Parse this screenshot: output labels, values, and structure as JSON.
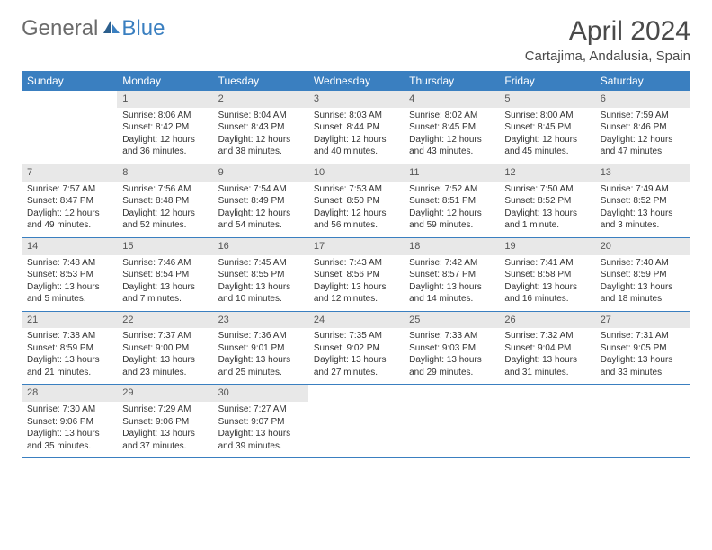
{
  "logo": {
    "text1": "General",
    "text2": "Blue"
  },
  "title": "April 2024",
  "location": "Cartajima, Andalusia, Spain",
  "weekdays": [
    "Sunday",
    "Monday",
    "Tuesday",
    "Wednesday",
    "Thursday",
    "Friday",
    "Saturday"
  ],
  "colors": {
    "header_bg": "#3a7fc0",
    "header_text": "#ffffff",
    "daynum_bg": "#e8e8e8",
    "border": "#3a7fc0"
  },
  "weeks": [
    [
      null,
      {
        "num": "1",
        "sunrise": "Sunrise: 8:06 AM",
        "sunset": "Sunset: 8:42 PM",
        "daylight": "Daylight: 12 hours and 36 minutes."
      },
      {
        "num": "2",
        "sunrise": "Sunrise: 8:04 AM",
        "sunset": "Sunset: 8:43 PM",
        "daylight": "Daylight: 12 hours and 38 minutes."
      },
      {
        "num": "3",
        "sunrise": "Sunrise: 8:03 AM",
        "sunset": "Sunset: 8:44 PM",
        "daylight": "Daylight: 12 hours and 40 minutes."
      },
      {
        "num": "4",
        "sunrise": "Sunrise: 8:02 AM",
        "sunset": "Sunset: 8:45 PM",
        "daylight": "Daylight: 12 hours and 43 minutes."
      },
      {
        "num": "5",
        "sunrise": "Sunrise: 8:00 AM",
        "sunset": "Sunset: 8:45 PM",
        "daylight": "Daylight: 12 hours and 45 minutes."
      },
      {
        "num": "6",
        "sunrise": "Sunrise: 7:59 AM",
        "sunset": "Sunset: 8:46 PM",
        "daylight": "Daylight: 12 hours and 47 minutes."
      }
    ],
    [
      {
        "num": "7",
        "sunrise": "Sunrise: 7:57 AM",
        "sunset": "Sunset: 8:47 PM",
        "daylight": "Daylight: 12 hours and 49 minutes."
      },
      {
        "num": "8",
        "sunrise": "Sunrise: 7:56 AM",
        "sunset": "Sunset: 8:48 PM",
        "daylight": "Daylight: 12 hours and 52 minutes."
      },
      {
        "num": "9",
        "sunrise": "Sunrise: 7:54 AM",
        "sunset": "Sunset: 8:49 PM",
        "daylight": "Daylight: 12 hours and 54 minutes."
      },
      {
        "num": "10",
        "sunrise": "Sunrise: 7:53 AM",
        "sunset": "Sunset: 8:50 PM",
        "daylight": "Daylight: 12 hours and 56 minutes."
      },
      {
        "num": "11",
        "sunrise": "Sunrise: 7:52 AM",
        "sunset": "Sunset: 8:51 PM",
        "daylight": "Daylight: 12 hours and 59 minutes."
      },
      {
        "num": "12",
        "sunrise": "Sunrise: 7:50 AM",
        "sunset": "Sunset: 8:52 PM",
        "daylight": "Daylight: 13 hours and 1 minute."
      },
      {
        "num": "13",
        "sunrise": "Sunrise: 7:49 AM",
        "sunset": "Sunset: 8:52 PM",
        "daylight": "Daylight: 13 hours and 3 minutes."
      }
    ],
    [
      {
        "num": "14",
        "sunrise": "Sunrise: 7:48 AM",
        "sunset": "Sunset: 8:53 PM",
        "daylight": "Daylight: 13 hours and 5 minutes."
      },
      {
        "num": "15",
        "sunrise": "Sunrise: 7:46 AM",
        "sunset": "Sunset: 8:54 PM",
        "daylight": "Daylight: 13 hours and 7 minutes."
      },
      {
        "num": "16",
        "sunrise": "Sunrise: 7:45 AM",
        "sunset": "Sunset: 8:55 PM",
        "daylight": "Daylight: 13 hours and 10 minutes."
      },
      {
        "num": "17",
        "sunrise": "Sunrise: 7:43 AM",
        "sunset": "Sunset: 8:56 PM",
        "daylight": "Daylight: 13 hours and 12 minutes."
      },
      {
        "num": "18",
        "sunrise": "Sunrise: 7:42 AM",
        "sunset": "Sunset: 8:57 PM",
        "daylight": "Daylight: 13 hours and 14 minutes."
      },
      {
        "num": "19",
        "sunrise": "Sunrise: 7:41 AM",
        "sunset": "Sunset: 8:58 PM",
        "daylight": "Daylight: 13 hours and 16 minutes."
      },
      {
        "num": "20",
        "sunrise": "Sunrise: 7:40 AM",
        "sunset": "Sunset: 8:59 PM",
        "daylight": "Daylight: 13 hours and 18 minutes."
      }
    ],
    [
      {
        "num": "21",
        "sunrise": "Sunrise: 7:38 AM",
        "sunset": "Sunset: 8:59 PM",
        "daylight": "Daylight: 13 hours and 21 minutes."
      },
      {
        "num": "22",
        "sunrise": "Sunrise: 7:37 AM",
        "sunset": "Sunset: 9:00 PM",
        "daylight": "Daylight: 13 hours and 23 minutes."
      },
      {
        "num": "23",
        "sunrise": "Sunrise: 7:36 AM",
        "sunset": "Sunset: 9:01 PM",
        "daylight": "Daylight: 13 hours and 25 minutes."
      },
      {
        "num": "24",
        "sunrise": "Sunrise: 7:35 AM",
        "sunset": "Sunset: 9:02 PM",
        "daylight": "Daylight: 13 hours and 27 minutes."
      },
      {
        "num": "25",
        "sunrise": "Sunrise: 7:33 AM",
        "sunset": "Sunset: 9:03 PM",
        "daylight": "Daylight: 13 hours and 29 minutes."
      },
      {
        "num": "26",
        "sunrise": "Sunrise: 7:32 AM",
        "sunset": "Sunset: 9:04 PM",
        "daylight": "Daylight: 13 hours and 31 minutes."
      },
      {
        "num": "27",
        "sunrise": "Sunrise: 7:31 AM",
        "sunset": "Sunset: 9:05 PM",
        "daylight": "Daylight: 13 hours and 33 minutes."
      }
    ],
    [
      {
        "num": "28",
        "sunrise": "Sunrise: 7:30 AM",
        "sunset": "Sunset: 9:06 PM",
        "daylight": "Daylight: 13 hours and 35 minutes."
      },
      {
        "num": "29",
        "sunrise": "Sunrise: 7:29 AM",
        "sunset": "Sunset: 9:06 PM",
        "daylight": "Daylight: 13 hours and 37 minutes."
      },
      {
        "num": "30",
        "sunrise": "Sunrise: 7:27 AM",
        "sunset": "Sunset: 9:07 PM",
        "daylight": "Daylight: 13 hours and 39 minutes."
      },
      null,
      null,
      null,
      null
    ]
  ]
}
